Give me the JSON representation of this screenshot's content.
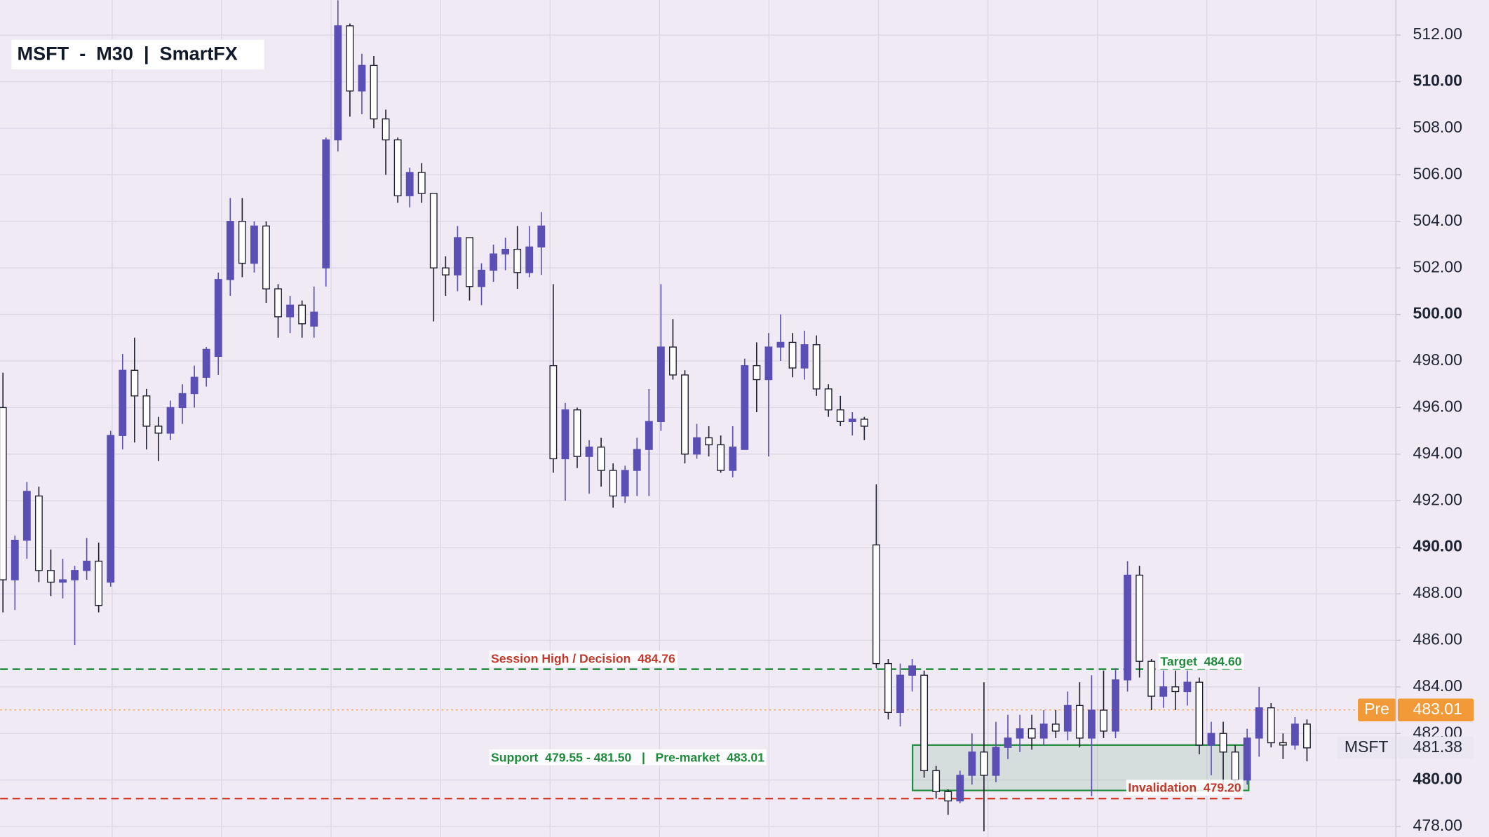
{
  "chart_data": {
    "type": "candlestick",
    "title": "MSFT  -  M30  |  SmartFX",
    "series": [
      {
        "name": "MSFT",
        "open": [
          496,
          488.6,
          490.3,
          492.2,
          489,
          488.5,
          488.6,
          489,
          489.4,
          488.5,
          494.8,
          497.6,
          496.5,
          495.2,
          494.9,
          496,
          496.6,
          497.3,
          498.2,
          501.5,
          504,
          502.2,
          503.8,
          501.1,
          499.9,
          500.4,
          499.5,
          502,
          507.5,
          512.4,
          509.6,
          510.7,
          508.4,
          507.5,
          505.1,
          506.1,
          505.2,
          502,
          501.7,
          503.3,
          501.2,
          501.9,
          502.6,
          502.8,
          501.8,
          502.9,
          497.8,
          493.8,
          495.9,
          493.9,
          494.3,
          493.3,
          492.2,
          493.3,
          494.2,
          495.4,
          498.6,
          497.4,
          494,
          494.7,
          494.4,
          493.3,
          494.2,
          497.8,
          497.2,
          498.6,
          498.8,
          497.7,
          498.7,
          496.8,
          495.9,
          495.4,
          495.5,
          490.1,
          485,
          482.9,
          484.5,
          484.5,
          480.4,
          479.5,
          479.1,
          480.2,
          481.2,
          480.2,
          481.4,
          481.8,
          482.2,
          481.8,
          482.4,
          482.1,
          483.2,
          481.8,
          483,
          482.1,
          484.3,
          488.8,
          485.1,
          483.6,
          484,
          483.8,
          484.2,
          481.5,
          482,
          481.2,
          480,
          481.8,
          483.1,
          481.6,
          481.5,
          482.4
        ],
        "high": [
          497.5,
          490.5,
          492.8,
          492.6,
          489.9,
          489.5,
          489.2,
          490.4,
          490.2,
          495,
          498.3,
          499,
          496.8,
          495.6,
          496.3,
          497,
          497.8,
          498.6,
          501.8,
          505,
          505,
          504,
          504,
          501.3,
          500.8,
          500.6,
          501.2,
          507.6,
          513.5,
          512.5,
          511.2,
          511.1,
          508.8,
          507.6,
          506.3,
          506.5,
          505.2,
          502.5,
          503.8,
          503.3,
          502.2,
          503,
          503.3,
          503.8,
          503.8,
          504.4,
          501.3,
          496.2,
          496,
          494.6,
          494.7,
          493.6,
          493.5,
          494.7,
          496.8,
          501.3,
          499.8,
          497.6,
          495.3,
          495.2,
          494.8,
          495.2,
          498.1,
          498.8,
          499.2,
          500,
          499.2,
          499.3,
          499.1,
          497,
          496.5,
          495.8,
          495.6,
          492.7,
          485.2,
          485,
          485.2,
          484.7,
          480.6,
          479.6,
          480.4,
          482,
          484.2,
          482.5,
          482.8,
          482.8,
          482.8,
          483,
          483,
          483.8,
          484.2,
          484.5,
          484.7,
          484.8,
          489.4,
          489.2,
          485.2,
          484.7,
          484.7,
          484.7,
          484.4,
          482.5,
          482.5,
          481.5,
          482.2,
          484,
          483.3,
          482,
          482.7,
          482.6
        ],
        "low": [
          487.2,
          487.3,
          489.5,
          488.5,
          487.9,
          487.8,
          485.8,
          488.6,
          487.2,
          488.3,
          494.2,
          494.5,
          494.2,
          493.7,
          494.6,
          495.3,
          496,
          496.9,
          497.4,
          500.8,
          501.6,
          501.8,
          500.5,
          499,
          499.2,
          499,
          499,
          501.2,
          507,
          508.5,
          508.6,
          508,
          506,
          504.8,
          504.6,
          504.8,
          499.7,
          500.8,
          501,
          500.6,
          500.4,
          501.4,
          501.9,
          501.1,
          501.6,
          501.7,
          493.2,
          492,
          493.4,
          492.3,
          492.6,
          491.7,
          491.9,
          492.2,
          492.2,
          495,
          497.2,
          493.6,
          493.8,
          493.9,
          493.2,
          493,
          494.2,
          495.8,
          493.9,
          498,
          497.3,
          497.2,
          496.5,
          495.6,
          495.2,
          494.8,
          494.6,
          484.8,
          482.6,
          482.3,
          483.8,
          480.1,
          479.2,
          478.5,
          479,
          479.8,
          477.8,
          479.9,
          480.9,
          481.2,
          481.3,
          481.5,
          481.8,
          481.7,
          481.4,
          479.3,
          481.8,
          481.8,
          483.8,
          484.4,
          483,
          483.1,
          483,
          483.2,
          481.1,
          480.2,
          479.8,
          479.6,
          479.8,
          481,
          481.4,
          480.9,
          481.3,
          480.8
        ],
        "close": [
          488.6,
          490.3,
          492.4,
          489,
          488.5,
          488.6,
          489,
          489.4,
          487.5,
          494.8,
          497.6,
          496.5,
          495.2,
          494.9,
          496,
          496.6,
          497.3,
          498.5,
          501.5,
          504,
          502.2,
          503.8,
          501.1,
          499.9,
          500.4,
          499.6,
          500.1,
          507.5,
          512.4,
          509.6,
          510.7,
          508.4,
          507.5,
          505.1,
          506.1,
          505.2,
          502,
          501.7,
          503.3,
          501.2,
          501.9,
          502.6,
          502.8,
          501.8,
          502.9,
          503.8,
          493.8,
          495.9,
          493.9,
          494.3,
          493.3,
          492.2,
          493.3,
          494.2,
          495.4,
          498.6,
          497.4,
          494,
          494.7,
          494.4,
          493.3,
          494.3,
          497.8,
          497.2,
          498.6,
          498.8,
          497.7,
          498.7,
          496.8,
          495.9,
          495.4,
          495.5,
          495.2,
          485,
          482.9,
          484.5,
          484.9,
          480.4,
          479.5,
          479.1,
          480.2,
          481.2,
          480.2,
          481.4,
          481.8,
          482.2,
          481.8,
          482.4,
          482.1,
          483.2,
          481.8,
          483,
          482.1,
          484.3,
          488.8,
          485.1,
          483.6,
          484,
          483.8,
          484.2,
          481.5,
          482,
          481.2,
          480,
          481.8,
          483.1,
          481.6,
          481.5,
          482.4,
          481.38
        ]
      }
    ],
    "up_color": "#5b4fb5",
    "down_color": "#ffffff",
    "outline_color": "#1e1e2e",
    "ylim": [
      477.55,
      513.51
    ],
    "yticks": [
      {
        "value": 478,
        "label": "478.00"
      },
      {
        "value": 480,
        "label": "480.00"
      },
      {
        "value": 482,
        "label": "482.00"
      },
      {
        "value": 484,
        "label": "484.00"
      },
      {
        "value": 486,
        "label": "486.00"
      },
      {
        "value": 488,
        "label": "488.00"
      },
      {
        "value": 490,
        "label": "490.00"
      },
      {
        "value": 492,
        "label": "492.00"
      },
      {
        "value": 494,
        "label": "494.00"
      },
      {
        "value": 496,
        "label": "496.00"
      },
      {
        "value": 498,
        "label": "498.00"
      },
      {
        "value": 500,
        "label": "500.00"
      },
      {
        "value": 502,
        "label": "502.00"
      },
      {
        "value": 504,
        "label": "504.00"
      },
      {
        "value": 506,
        "label": "506.00"
      },
      {
        "value": 508,
        "label": "508.00"
      },
      {
        "value": 510,
        "label": "510.00"
      },
      {
        "value": 512,
        "label": "512.00"
      }
    ],
    "grid": true,
    "levels": [
      {
        "value": 484.76,
        "color": "#1f8a3c",
        "style": "dashed"
      },
      {
        "value": 479.2,
        "color": "#d43c2c",
        "style": "dashed"
      },
      {
        "value": 483.01,
        "color": "#f0a060",
        "style": "dotted"
      }
    ],
    "zone": {
      "low": 479.55,
      "high": 481.5,
      "color": "#1f8a3c"
    },
    "annotations": [
      {
        "text": "Session High / Decision  484.76",
        "color": "#c0392b"
      },
      {
        "text": "Target  484.60",
        "color": "#1f8a3c"
      },
      {
        "text": "Support  479.55 - 481.50   |   Pre-market  483.01",
        "color": "#1f8a3c"
      },
      {
        "text": "Invalidation  479.20",
        "color": "#c0392b"
      }
    ],
    "price_labels": [
      {
        "name": "Pre",
        "value": 483.01,
        "color": "#f29a38"
      },
      {
        "name": "MSFT",
        "value": 481.38,
        "color": "#ebe7f2"
      }
    ]
  }
}
